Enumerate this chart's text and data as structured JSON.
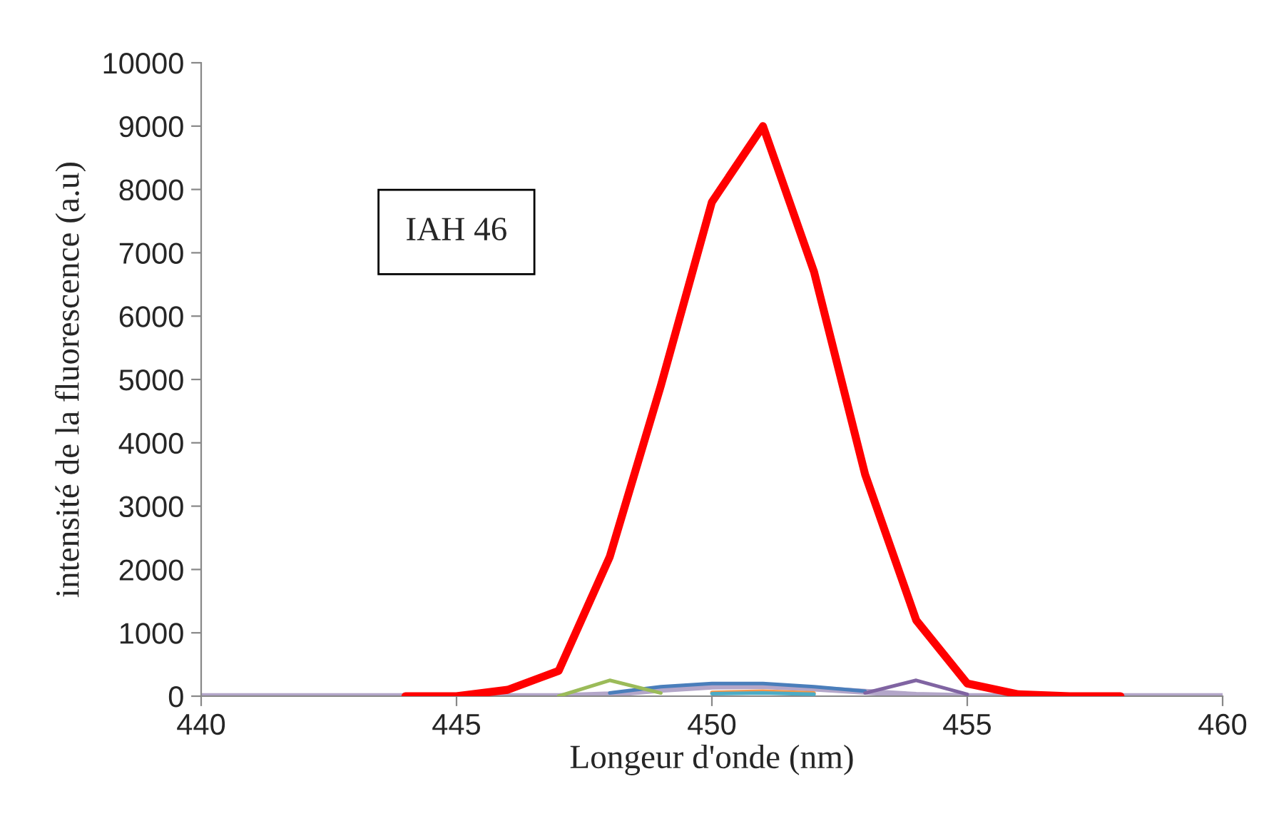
{
  "chart_data": {
    "type": "line",
    "xlabel": "Longeur d'onde (nm)",
    "ylabel": "intensité de la fluorescence (a.u)",
    "annotations": [
      "IAH 46"
    ],
    "x": [
      440,
      441,
      442,
      443,
      444,
      445,
      446,
      447,
      448,
      449,
      450,
      451,
      452,
      453,
      454,
      455,
      456,
      457,
      458,
      459,
      460
    ],
    "series": [
      {
        "color": "#ff0000",
        "values": [
          null,
          null,
          null,
          null,
          0,
          0,
          100,
          400,
          2200,
          4900,
          7800,
          9000,
          6700,
          3500,
          1200,
          200,
          30,
          0,
          0,
          null,
          null
        ]
      },
      {
        "color": "#4a7ebb",
        "values": [
          null,
          null,
          null,
          null,
          null,
          null,
          null,
          null,
          50,
          150,
          200,
          200,
          150,
          80,
          null,
          null,
          null,
          null,
          null,
          null,
          null
        ]
      },
      {
        "color": "#9bbb59",
        "values": [
          null,
          null,
          null,
          null,
          null,
          null,
          null,
          0,
          250,
          50,
          null,
          null,
          null,
          null,
          null,
          null,
          null,
          null,
          null,
          null,
          null
        ]
      },
      {
        "color": "#8064a2",
        "values": [
          null,
          null,
          null,
          null,
          null,
          null,
          null,
          null,
          null,
          null,
          null,
          null,
          null,
          50,
          250,
          30,
          null,
          null,
          null,
          null,
          null
        ]
      },
      {
        "color": "#f79646",
        "values": [
          null,
          null,
          null,
          null,
          null,
          null,
          null,
          null,
          null,
          null,
          60,
          80,
          50,
          null,
          null,
          null,
          null,
          null,
          null,
          null,
          null
        ]
      },
      {
        "color": "#4bacc6",
        "values": [
          null,
          null,
          null,
          null,
          null,
          null,
          null,
          null,
          null,
          null,
          40,
          50,
          30,
          null,
          null,
          null,
          null,
          null,
          null,
          null,
          null
        ]
      },
      {
        "color": "#b3a6c9",
        "values": [
          0,
          0,
          0,
          0,
          0,
          0,
          0,
          0,
          30,
          100,
          150,
          160,
          120,
          70,
          20,
          0,
          0,
          0,
          0,
          0,
          0
        ]
      }
    ],
    "xlim": [
      440,
      460
    ],
    "xticks": [
      440,
      445,
      450,
      455,
      460
    ],
    "ylim": [
      0,
      10000
    ],
    "yticks": [
      0,
      1000,
      2000,
      3000,
      4000,
      5000,
      6000,
      7000,
      8000,
      9000,
      10000
    ],
    "grid": false,
    "legend": false,
    "marker": "none",
    "line_style": "solid"
  }
}
